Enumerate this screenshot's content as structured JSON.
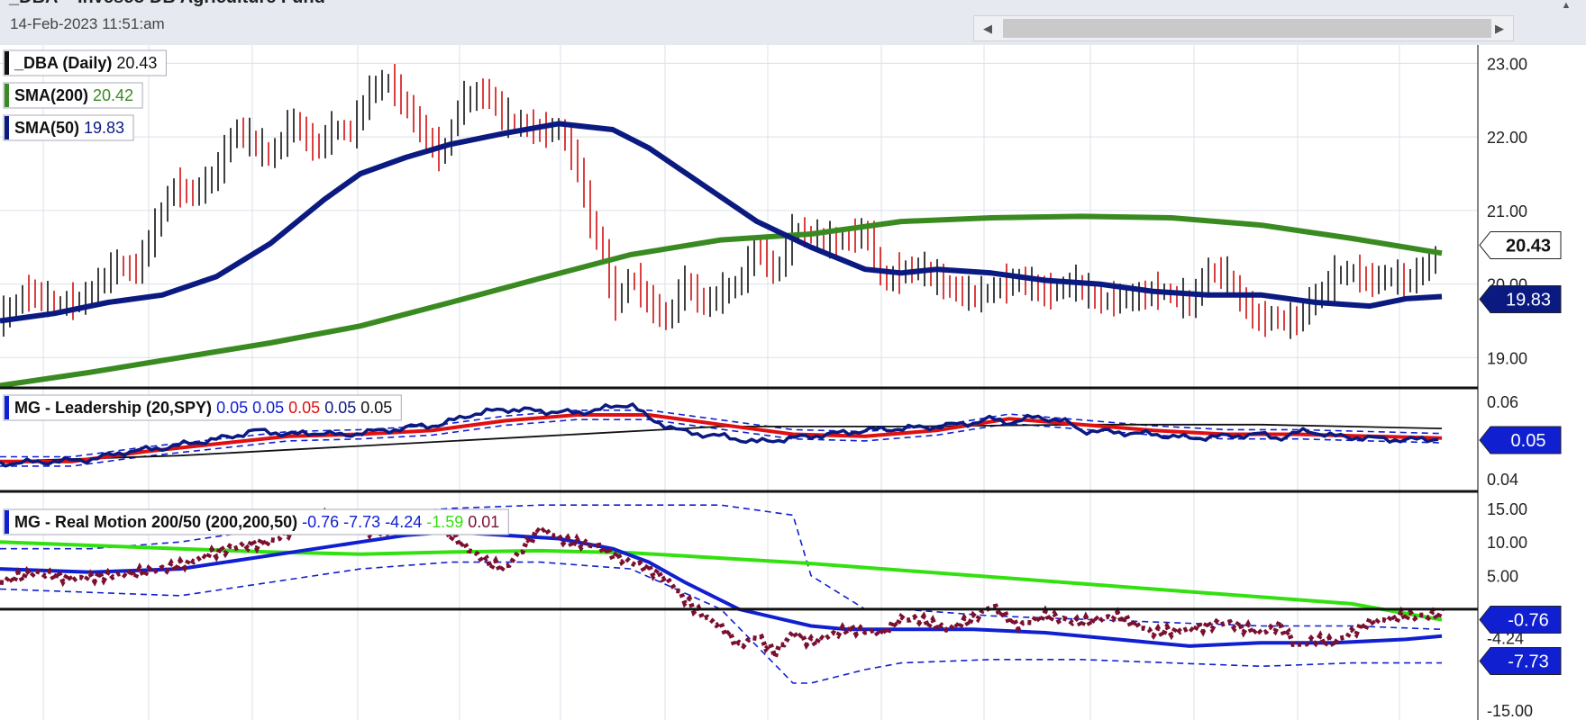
{
  "header": {
    "title": "_DBA – Invesco DB Agriculture Fund",
    "date": "14-Feb-2023 11:51:am"
  },
  "icons": {
    "scroll_left": "triangle-left-icon",
    "scroll_right": "triangle-right-icon",
    "scroll_up": "triangle-up-icon"
  },
  "colors": {
    "up_bar": "#111111",
    "down_bar": "#d01010",
    "sma200": "#3a8a22",
    "sma50": "#0b1a80",
    "leadership": "#0b1a80",
    "leadership_avg": "#e01010",
    "rm_price": "#7a1030",
    "rm_sma50": "#1020d0",
    "rm_sma200": "#33e010"
  },
  "chart_data": [
    {
      "type": "line",
      "panel": "price",
      "legend": [
        {
          "label": "_DBA (Daily)",
          "value": "20.43",
          "color": "#111111"
        },
        {
          "label": "SMA(200)",
          "value": "20.42",
          "color": "#3a8a22"
        },
        {
          "label": "SMA(50)",
          "value": "19.83",
          "color": "#0b1a80"
        }
      ],
      "y_ticks": [
        "23.00",
        "22.00",
        "21.00",
        "20.00",
        "19.00"
      ],
      "ylim": [
        18.6,
        23.25
      ],
      "grid": true,
      "price_badge": "20.43",
      "sma50_badge": "19.83",
      "price_path": {
        "x": [
          0,
          30,
          60,
          90,
          110,
          130,
          150,
          170,
          190,
          215,
          240,
          260,
          280,
          300,
          325,
          350,
          370,
          390,
          410,
          430,
          450,
          470,
          490,
          510,
          540,
          560,
          580,
          600,
          620,
          640,
          655,
          670,
          680,
          700,
          720,
          740,
          760,
          780,
          800,
          820,
          840,
          860,
          880,
          900,
          920,
          940,
          960,
          980,
          1000,
          1020,
          1050,
          1080,
          1100,
          1130,
          1160,
          1190,
          1220,
          1260,
          1290,
          1320,
          1340,
          1360,
          1380,
          1400,
          1410,
          1430,
          1440,
          1450,
          1460,
          1470,
          1480,
          1500,
          1520,
          1540,
          1560,
          1580,
          1600
        ],
        "y": [
          19.5,
          19.88,
          19.7,
          19.75,
          20.0,
          20.25,
          20.15,
          20.7,
          21.3,
          21.2,
          21.5,
          22.1,
          21.9,
          21.7,
          22.2,
          21.8,
          22.1,
          22.05,
          22.6,
          22.75,
          22.4,
          22.0,
          21.7,
          22.45,
          22.6,
          22.2,
          22.15,
          22.05,
          22.1,
          21.6,
          20.8,
          20.4,
          19.65,
          20.1,
          19.7,
          19.5,
          20.0,
          19.7,
          19.85,
          20.0,
          20.5,
          20.1,
          20.7,
          20.65,
          20.55,
          20.6,
          20.7,
          20.0,
          20.15,
          20.2,
          19.95,
          19.8,
          19.9,
          20.05,
          19.85,
          20.0,
          19.75,
          19.8,
          19.9,
          19.7,
          20.15,
          20.1,
          19.7,
          19.45,
          19.55,
          19.45,
          19.5,
          19.7,
          19.8,
          19.9,
          20.1,
          20.15,
          20.0,
          20.1,
          20.0,
          20.2,
          20.43
        ]
      },
      "sma200": {
        "x": [
          0,
          100,
          200,
          300,
          400,
          500,
          600,
          700,
          800,
          900,
          1000,
          1100,
          1200,
          1300,
          1400,
          1500,
          1600
        ],
        "y": [
          18.62,
          18.8,
          19.0,
          19.2,
          19.43,
          19.75,
          20.08,
          20.4,
          20.6,
          20.68,
          20.85,
          20.9,
          20.92,
          20.9,
          20.8,
          20.62,
          20.42
        ]
      },
      "sma50": {
        "x": [
          0,
          60,
          120,
          180,
          240,
          300,
          360,
          400,
          450,
          500,
          560,
          620,
          680,
          720,
          780,
          840,
          900,
          960,
          1000,
          1040,
          1100,
          1160,
          1220,
          1280,
          1340,
          1400,
          1460,
          1520,
          1560,
          1600
        ],
        "y": [
          19.5,
          19.6,
          19.75,
          19.85,
          20.1,
          20.55,
          21.15,
          21.5,
          21.72,
          21.9,
          22.05,
          22.18,
          22.1,
          21.85,
          21.35,
          20.85,
          20.5,
          20.2,
          20.15,
          20.2,
          20.15,
          20.05,
          20.0,
          19.9,
          19.85,
          19.85,
          19.75,
          19.7,
          19.8,
          19.83
        ]
      }
    },
    {
      "type": "line",
      "panel": "leadership",
      "legend_label": "MG - Leadership (20,SPY)",
      "legend_values": [
        {
          "value": "0.05",
          "color": "#1020d0"
        },
        {
          "value": "0.05",
          "color": "#1020d0"
        },
        {
          "value": "0.05",
          "color": "#e01010"
        },
        {
          "value": "0.05",
          "color": "#0b1a80"
        },
        {
          "value": "0.05",
          "color": "#111111"
        }
      ],
      "y_ticks": [
        "0.06",
        "0.04"
      ],
      "ylim": [
        0.037,
        0.063
      ],
      "badge": "0.05",
      "ratio": {
        "x": [
          0,
          60,
          100,
          140,
          180,
          220,
          260,
          280,
          300,
          330,
          360,
          380,
          400,
          430,
          460,
          490,
          520,
          560,
          600,
          640,
          680,
          700,
          720,
          760,
          800,
          840,
          880,
          920,
          960,
          1000,
          1040,
          1080,
          1100,
          1120,
          1150,
          1180,
          1200,
          1240,
          1280,
          1320,
          1360,
          1400,
          1420,
          1450,
          1480,
          1520,
          1560,
          1600
        ],
        "y": [
          0.044,
          0.0445,
          0.045,
          0.047,
          0.048,
          0.0495,
          0.051,
          0.0525,
          0.052,
          0.0515,
          0.052,
          0.051,
          0.052,
          0.0525,
          0.0535,
          0.054,
          0.0565,
          0.058,
          0.0575,
          0.057,
          0.0585,
          0.0595,
          0.0555,
          0.052,
          0.051,
          0.0495,
          0.0505,
          0.0515,
          0.0525,
          0.053,
          0.0535,
          0.0545,
          0.0555,
          0.0545,
          0.056,
          0.055,
          0.0525,
          0.052,
          0.0515,
          0.0505,
          0.051,
          0.0515,
          0.0505,
          0.0525,
          0.051,
          0.0505,
          0.05,
          0.0505
        ]
      },
      "ratio_avg": {
        "x": [
          0,
          80,
          160,
          240,
          320,
          400,
          480,
          560,
          640,
          720,
          800,
          880,
          960,
          1040,
          1120,
          1200,
          1280,
          1360,
          1440,
          1520,
          1600
        ],
        "y": [
          0.0445,
          0.0445,
          0.047,
          0.049,
          0.051,
          0.0515,
          0.0525,
          0.055,
          0.0565,
          0.0565,
          0.054,
          0.0515,
          0.051,
          0.0525,
          0.0555,
          0.054,
          0.0525,
          0.0515,
          0.0515,
          0.051,
          0.0505
        ]
      },
      "ratio_long": {
        "x": [
          0,
          200,
          400,
          600,
          800,
          1000,
          1200,
          1400,
          1600
        ],
        "y": [
          0.0445,
          0.046,
          0.0485,
          0.051,
          0.0535,
          0.0535,
          0.054,
          0.054,
          0.053
        ]
      }
    },
    {
      "type": "line",
      "panel": "real_motion",
      "legend_label": "MG - Real Motion 200/50 (200,200,50)",
      "legend_values": [
        {
          "value": "-0.76",
          "color": "#1020d0"
        },
        {
          "value": "-7.73",
          "color": "#1020d0"
        },
        {
          "value": "-4.24",
          "color": "#1020d0"
        },
        {
          "value": "-1.59",
          "color": "#33e010"
        },
        {
          "value": "0.01",
          "color": "#7a1030"
        }
      ],
      "y_ticks": [
        "15.00",
        "10.00",
        "5.00",
        "-4.24",
        "-15.00"
      ],
      "ylim": [
        -16.5,
        17
      ],
      "zero_line": 0,
      "badges": [
        "-0.76",
        "-4.24",
        "-7.73"
      ],
      "momentum": {
        "x": [
          0,
          40,
          80,
          120,
          160,
          200,
          240,
          270,
          300,
          330,
          360,
          390,
          420,
          450,
          480,
          500,
          520,
          540,
          560,
          580,
          600,
          630,
          660,
          690,
          700,
          720,
          740,
          760,
          780,
          800,
          820,
          840,
          860,
          880,
          900,
          940,
          980,
          1000,
          1020,
          1050,
          1080,
          1100,
          1130,
          1160,
          1200,
          1240,
          1280,
          1320,
          1360,
          1400,
          1420,
          1440,
          1460,
          1480,
          1500,
          1520,
          1540,
          1560,
          1580,
          1600
        ],
        "y": [
          4,
          5.5,
          4.5,
          5,
          5.5,
          6.5,
          8.5,
          9.5,
          10,
          12,
          14,
          12,
          11.5,
          12,
          13,
          11,
          9,
          7,
          6,
          9,
          12,
          10,
          9.5,
          7.5,
          7,
          6,
          4.5,
          1.5,
          -1,
          -2.5,
          -5.5,
          -4,
          -6.5,
          -3.5,
          -5,
          -3,
          -3.5,
          -1.5,
          -1.5,
          -3,
          -1.5,
          0.5,
          -2.5,
          -1,
          -2,
          -1,
          -3.5,
          -3,
          -2,
          -3.5,
          -2.5,
          -5.5,
          -4.5,
          -5,
          -3.5,
          -2,
          -1.5,
          -1,
          -1,
          -0.76
        ]
      },
      "rm_sma50": {
        "x": [
          0,
          100,
          200,
          300,
          400,
          450,
          500,
          560,
          620,
          680,
          720,
          760,
          820,
          900,
          940,
          1000,
          1080,
          1160,
          1240,
          1320,
          1400,
          1480,
          1560,
          1600
        ],
        "y": [
          6,
          5.5,
          6,
          8,
          10,
          11,
          11.5,
          11,
          10.5,
          9,
          7,
          4,
          0,
          -2.5,
          -3,
          -3,
          -3,
          -3.5,
          -4.5,
          -5.5,
          -5,
          -5,
          -4.5,
          -4
        ]
      },
      "rm_sma200": {
        "x": [
          0,
          100,
          200,
          300,
          400,
          500,
          600,
          700,
          800,
          900,
          1000,
          1100,
          1200,
          1300,
          1400,
          1500,
          1600
        ],
        "y": [
          10,
          9.5,
          9,
          8.5,
          8.2,
          8.5,
          8.7,
          8.4,
          7.6,
          6.8,
          5.8,
          4.8,
          3.8,
          2.8,
          1.8,
          0.8,
          -1.59
        ]
      },
      "upper_band": {
        "x": [
          0,
          100,
          200,
          300,
          400,
          500,
          600,
          700,
          800,
          880,
          900,
          960,
          1000,
          1100,
          1200,
          1300,
          1400,
          1500,
          1600
        ],
        "y": [
          9,
          9,
          10,
          12,
          14,
          15,
          15.5,
          15.5,
          15.5,
          14,
          5,
          0,
          0,
          -1,
          -1.5,
          -2,
          -2.5,
          -2.5,
          -3
        ]
      },
      "lower_band": {
        "x": [
          0,
          100,
          200,
          300,
          400,
          500,
          600,
          700,
          800,
          880,
          900,
          960,
          1000,
          1100,
          1200,
          1300,
          1400,
          1500,
          1600
        ],
        "y": [
          3,
          2.5,
          2,
          4,
          6,
          7,
          7,
          6,
          0,
          -11,
          -11,
          -9,
          -8,
          -7.5,
          -7.5,
          -8,
          -8.5,
          -8,
          -8
        ]
      }
    }
  ]
}
